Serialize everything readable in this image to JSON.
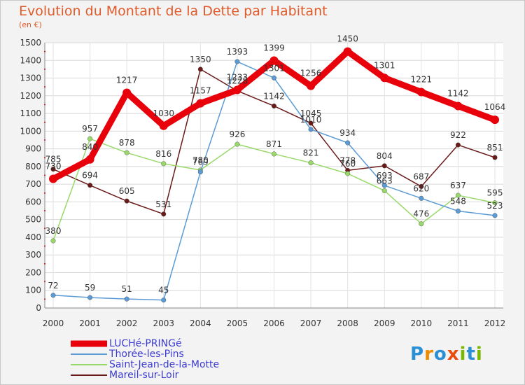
{
  "title": "Evolution du Montant de la Dette par Habitant",
  "subtitle": "(en €)",
  "brand": {
    "text": "Proxiti",
    "letters": [
      "P",
      "r",
      "o",
      "x",
      "i",
      "t",
      "i"
    ],
    "colors": [
      "#2b8fd6",
      "#f08a00",
      "#2b8fd6",
      "#e84d0e",
      "#7ab800",
      "#2b8fd6",
      "#7ab800"
    ]
  },
  "chart_data": {
    "type": "line",
    "x": [
      "2000",
      "2001",
      "2002",
      "2003",
      "2004",
      "2005",
      "2006",
      "2007",
      "2008",
      "2009",
      "2010",
      "2011",
      "2012"
    ],
    "ylim": [
      0,
      1500
    ],
    "yticks": [
      0,
      100,
      200,
      300,
      400,
      500,
      600,
      700,
      800,
      900,
      1000,
      1100,
      1200,
      1300,
      1400,
      1500
    ],
    "grid": true,
    "legend_position": "bottom-left",
    "series": [
      {
        "name": "LUCHé-PRINGé",
        "color": "#e8000b",
        "values": [
          730,
          840,
          1217,
          1030,
          1157,
          1233,
          1399,
          1256,
          1450,
          1301,
          1221,
          1142,
          1064
        ]
      },
      {
        "name": "Thorée-les-Pins",
        "color": "#5b9bd5",
        "values": [
          72,
          59,
          51,
          45,
          769,
          1393,
          1301,
          1010,
          934,
          693,
          620,
          548,
          523
        ]
      },
      {
        "name": "Saint-Jean-de-la-Motte",
        "color": "#99d96a",
        "values": [
          380,
          957,
          878,
          816,
          780,
          926,
          871,
          821,
          760,
          663,
          476,
          637,
          595
        ]
      },
      {
        "name": "Mareil-sur-Loir",
        "color": "#6b1a1a",
        "values": [
          785,
          694,
          605,
          531,
          1350,
          1228,
          1142,
          1045,
          778,
          804,
          687,
          922,
          851
        ]
      }
    ],
    "point_labels": [
      {
        "series": 0,
        "labels": [
          "730",
          "840",
          "1217",
          "1030",
          "1157",
          "1233",
          "1399",
          "1256",
          "1450",
          "1301",
          "1221",
          "1142",
          "1064"
        ]
      },
      {
        "series": 1,
        "labels": [
          "72",
          "59",
          "51",
          "45",
          "769",
          "1393",
          "1301",
          "1010",
          "934",
          "693",
          "620",
          "548",
          "523"
        ]
      },
      {
        "series": 2,
        "labels": [
          "380",
          "957",
          "878",
          "816",
          "780",
          "926",
          "871",
          "821",
          "760",
          "663",
          "476",
          "637",
          "595"
        ]
      },
      {
        "series": 3,
        "labels": [
          "785",
          "694",
          "605",
          "531",
          "1350",
          "1228",
          "1142",
          "1045",
          "778",
          "804",
          "687",
          "922",
          "851"
        ]
      }
    ]
  }
}
